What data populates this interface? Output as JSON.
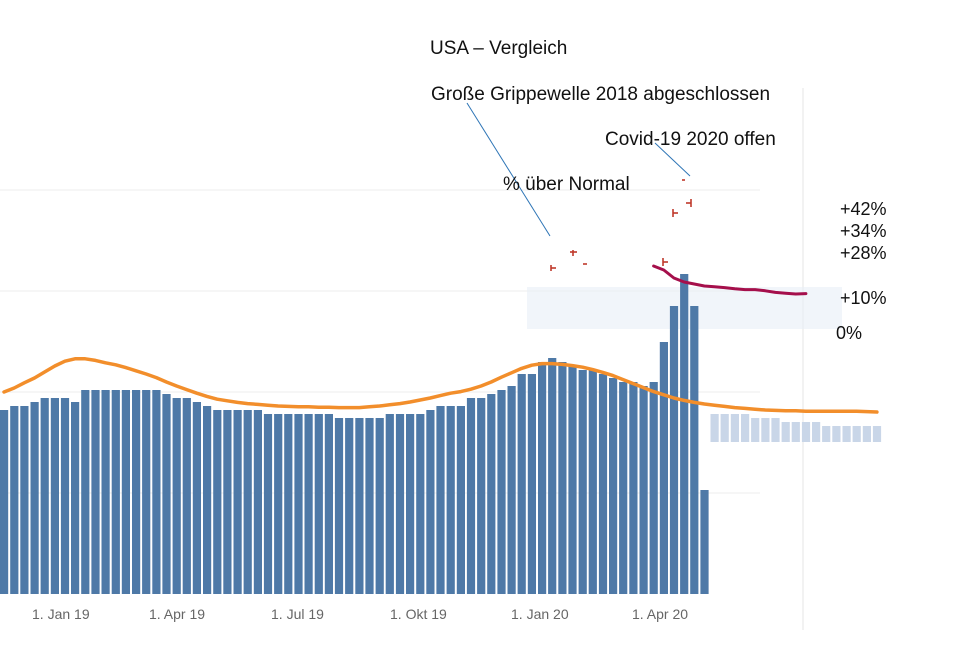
{
  "chart_data": {
    "type": "bar",
    "title": "USA – Vergleich",
    "xlabel": "",
    "ylabel": "",
    "x_ticks": [
      "1. Jan 19",
      "1. Apr 19",
      "1. Jul 19",
      "1. Okt 19",
      "1. Jan 20",
      "1. Apr 20"
    ],
    "annotations": {
      "flu": "Große Grippewelle 2018 abgeschlossen",
      "covid": "Covid-19  2020 offen",
      "above_normal": "% über Normal"
    },
    "percent_labels": [
      "+42%",
      "+34%",
      "+28%",
      "+10%",
      "0%"
    ],
    "colors": {
      "bar": "#4e79a7",
      "normal": "#f28e2b",
      "covid": "#a50f4b",
      "grid": "#eeeeee"
    },
    "bars": [
      46,
      47,
      47,
      48,
      49,
      49,
      49,
      48,
      51,
      51,
      51,
      51,
      51,
      51,
      51,
      51,
      50,
      49,
      49,
      48,
      47,
      46,
      46,
      46,
      46,
      46,
      45,
      45,
      45,
      45,
      45,
      45,
      45,
      44,
      44,
      44,
      44,
      44,
      45,
      45,
      45,
      45,
      46,
      47,
      47,
      47,
      49,
      49,
      50,
      51,
      52,
      55,
      55,
      58,
      59,
      58,
      57,
      56,
      56,
      55,
      54,
      53,
      53,
      52,
      53,
      63,
      72,
      80,
      72,
      26
    ],
    "bars_faded": [
      45,
      45,
      45,
      45,
      44,
      44,
      44,
      43,
      43,
      43,
      43,
      42,
      42,
      42,
      42,
      42,
      42
    ],
    "faded_baseline": 38,
    "normal_curve": [
      50.5,
      51.5,
      52.8,
      54.0,
      55.5,
      57.0,
      58.2,
      58.8,
      58.8,
      58.4,
      57.8,
      57.3,
      56.6,
      55.8,
      55.0,
      54.1,
      53.0,
      52.0,
      51.1,
      50.2,
      49.4,
      48.7,
      48.3,
      47.9,
      47.6,
      47.4,
      47.2,
      47.0,
      46.9,
      46.8,
      46.8,
      46.7,
      46.7,
      46.6,
      46.6,
      46.6,
      46.8,
      47.0,
      47.3,
      47.6,
      48.0,
      48.5,
      49.0,
      49.6,
      50.2,
      50.6,
      51.2,
      52.0,
      53.0,
      54.2,
      55.3,
      56.4,
      57.2,
      57.6,
      57.6,
      57.4,
      57.1,
      56.7,
      56.1,
      55.4,
      54.6,
      53.6,
      52.6,
      51.6,
      50.6,
      49.8,
      49.0,
      48.4,
      47.9,
      47.5,
      47.2,
      46.9,
      46.6,
      46.4,
      46.2,
      46.0,
      45.9,
      45.8,
      45.8,
      45.7,
      45.7,
      45.7,
      45.7,
      45.7,
      45.7,
      45.6,
      45.5
    ],
    "covid_curve": [
      82,
      81,
      79,
      78,
      77.5,
      77,
      76.8,
      76.6,
      76.3,
      76.1,
      76.1,
      75.8,
      75.4,
      75.2,
      75.0,
      75.1
    ],
    "ylim": [
      0,
      100
    ]
  }
}
